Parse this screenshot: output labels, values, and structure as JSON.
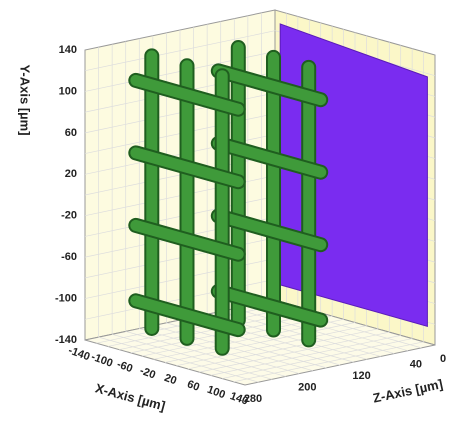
{
  "axes": {
    "x": {
      "label": "X-Axis [µm]",
      "ticks": [
        -140,
        -100,
        -60,
        -20,
        20,
        60,
        100,
        140
      ]
    },
    "y": {
      "label": "Y-Axis [µm]",
      "ticks": [
        140,
        100,
        60,
        20,
        -20,
        -60,
        -100,
        -140
      ]
    },
    "z": {
      "label": "Z-Axis [µm]",
      "ticks": [
        280,
        200,
        120,
        40,
        0
      ]
    }
  }
}
